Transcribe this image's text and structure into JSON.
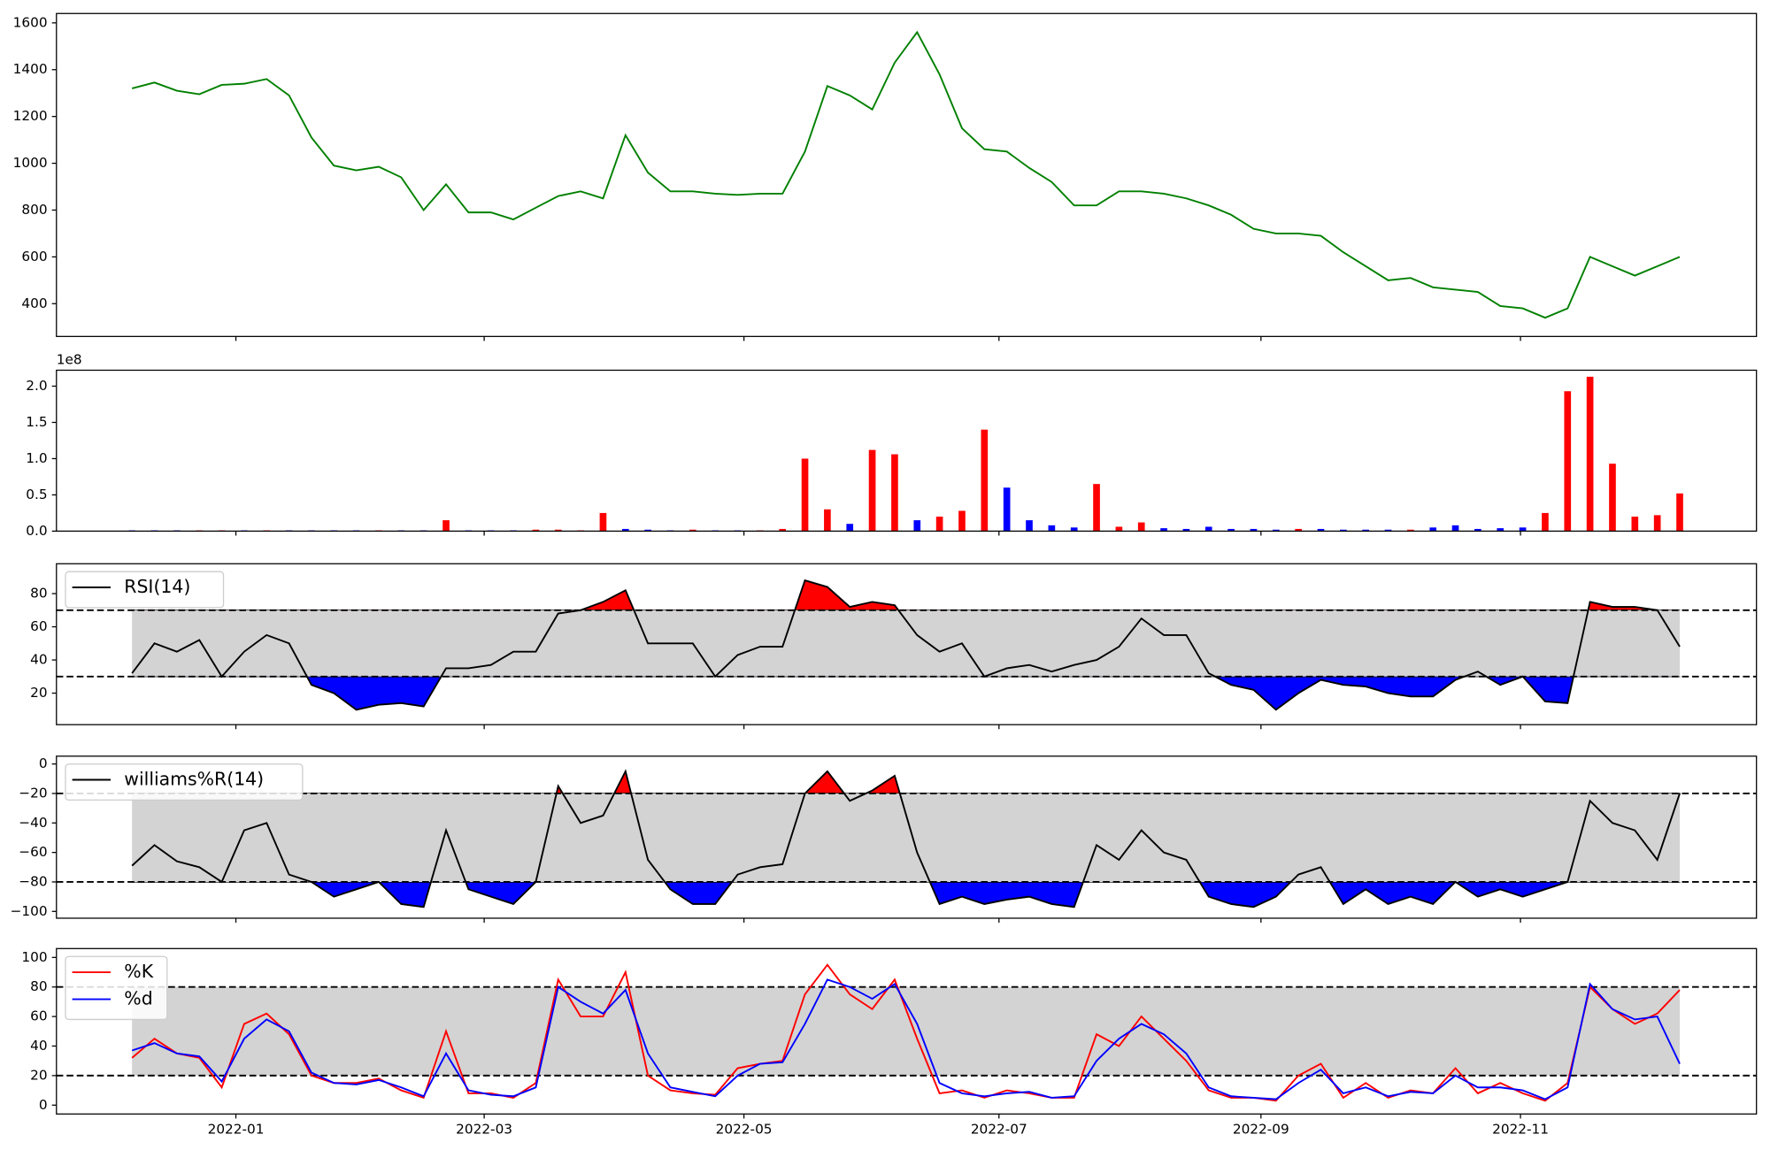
{
  "chart_data": [
    {
      "type": "line",
      "series": [
        {
          "color": "#008000",
          "values": [
            1320,
            1345,
            1310,
            1295,
            1335,
            1340,
            1360,
            1290,
            1110,
            990,
            970,
            985,
            940,
            800,
            910,
            790,
            790,
            760,
            810,
            860,
            880,
            850,
            1120,
            960,
            880,
            880,
            870,
            865,
            870,
            870,
            1050,
            1330,
            1290,
            1230,
            1430,
            1560,
            1380,
            1150,
            1060,
            1050,
            980,
            920,
            820,
            820,
            880,
            880,
            870,
            850,
            820,
            780,
            720,
            700,
            700,
            690,
            620,
            560,
            500,
            510,
            470,
            460,
            450,
            390,
            380,
            340,
            380,
            600,
            560,
            520,
            560,
            600
          ]
        }
      ],
      "ylim": [
        260,
        1640
      ],
      "yticks": [
        400,
        600,
        800,
        1000,
        1200,
        1400,
        1600
      ]
    },
    {
      "type": "bar",
      "offset_text": "1e8",
      "values": [
        0.01,
        0.01,
        0.01,
        0.01,
        0.01,
        0.01,
        0.01,
        0.01,
        0.01,
        0.01,
        0.01,
        0.01,
        0.01,
        0.01,
        0.15,
        0.01,
        0.01,
        0.01,
        0.02,
        0.02,
        0.01,
        0.25,
        0.03,
        0.02,
        0.01,
        0.02,
        0.01,
        0.01,
        0.01,
        0.03,
        1.0,
        0.3,
        0.1,
        1.12,
        1.06,
        0.15,
        0.2,
        0.28,
        1.4,
        0.6,
        0.15,
        0.08,
        0.05,
        0.65,
        0.06,
        0.12,
        0.04,
        0.03,
        0.06,
        0.03,
        0.03,
        0.02,
        0.03,
        0.03,
        0.02,
        0.02,
        0.02,
        0.02,
        0.05,
        0.08,
        0.03,
        0.04,
        0.05,
        0.25,
        1.93,
        2.13,
        0.93,
        0.2,
        0.22,
        0.52
      ],
      "colors": [
        "blue",
        "blue",
        "blue",
        "red",
        "red",
        "blue",
        "red",
        "blue",
        "blue",
        "blue",
        "blue",
        "red",
        "blue",
        "blue",
        "red",
        "blue",
        "blue",
        "blue",
        "red",
        "red",
        "red",
        "red",
        "blue",
        "blue",
        "blue",
        "red",
        "blue",
        "blue",
        "red",
        "red",
        "red",
        "red",
        "blue",
        "red",
        "red",
        "blue",
        "red",
        "red",
        "red",
        "blue",
        "blue",
        "blue",
        "blue",
        "red",
        "red",
        "red",
        "blue",
        "blue",
        "blue",
        "blue",
        "blue",
        "blue",
        "red",
        "blue",
        "blue",
        "blue",
        "blue",
        "red",
        "blue",
        "blue",
        "blue",
        "blue",
        "blue",
        "red",
        "red",
        "red",
        "red",
        "red",
        "red",
        "red"
      ],
      "ylim": [
        0,
        2.22
      ],
      "yticks": [
        {
          "value": 0,
          "label": "0.0"
        },
        0.5,
        {
          "value": 1,
          "label": "1.0"
        },
        1.5,
        {
          "value": 2,
          "label": "2.0"
        }
      ]
    },
    {
      "type": "line",
      "legend": "upper left",
      "hlines": [
        30,
        70
      ],
      "fill": {
        "band": "#d3d3d3",
        "above": "red",
        "below": "blue"
      },
      "series": [
        {
          "name": "RSI(14)",
          "color": "black",
          "values": [
            32,
            50,
            45,
            52,
            30,
            45,
            55,
            50,
            25,
            20,
            10,
            13,
            14,
            12,
            35,
            35,
            37,
            45,
            45,
            68,
            70,
            75,
            82,
            50,
            50,
            50,
            30,
            43,
            48,
            48,
            88,
            84,
            72,
            75,
            73,
            55,
            45,
            50,
            30,
            35,
            37,
            33,
            37,
            40,
            48,
            65,
            55,
            55,
            32,
            25,
            22,
            10,
            20,
            28,
            25,
            24,
            20,
            18,
            18,
            28,
            33,
            25,
            30,
            15,
            14,
            75,
            72,
            72,
            70,
            48
          ]
        }
      ],
      "ylim": [
        1,
        98
      ],
      "yticks": [
        20,
        40,
        60,
        80
      ]
    },
    {
      "type": "line",
      "legend": "upper left",
      "hlines": [
        -80,
        -20
      ],
      "fill": {
        "band": "#d3d3d3",
        "above": "red",
        "below": "blue"
      },
      "series": [
        {
          "name": "williams%R(14)",
          "color": "black",
          "values": [
            -69,
            -55,
            -66,
            -70,
            -80,
            -45,
            -40,
            -75,
            -80,
            -90,
            -85,
            -80,
            -95,
            -97,
            -45,
            -85,
            -90,
            -95,
            -80,
            -15,
            -40,
            -35,
            -5,
            -65,
            -85,
            -95,
            -95,
            -75,
            -70,
            -68,
            -20,
            -5,
            -25,
            -18,
            -8,
            -60,
            -95,
            -90,
            -95,
            -92,
            -90,
            -95,
            -97,
            -55,
            -65,
            -45,
            -60,
            -65,
            -90,
            -95,
            -97,
            -90,
            -75,
            -70,
            -95,
            -85,
            -95,
            -90,
            -95,
            -80,
            -90,
            -85,
            -90,
            -85,
            -80,
            -25,
            -40,
            -45,
            -65,
            -20
          ]
        }
      ],
      "ylim": [
        -104.6,
        5.3
      ],
      "yticks": [
        {
          "value": -100,
          "label": "−100"
        },
        {
          "value": -80,
          "label": "−80"
        },
        {
          "value": -60,
          "label": "−60"
        },
        {
          "value": -40,
          "label": "−40"
        },
        {
          "value": -20,
          "label": "−20"
        },
        0
      ]
    },
    {
      "type": "line",
      "legend": "upper left",
      "hlines": [
        20,
        80
      ],
      "fill": {
        "band": "#d3d3d3"
      },
      "series": [
        {
          "name": "%K",
          "color": "red",
          "values": [
            32,
            45,
            35,
            32,
            12,
            55,
            62,
            48,
            20,
            15,
            15,
            18,
            10,
            5,
            50,
            8,
            8,
            5,
            15,
            85,
            60,
            60,
            90,
            20,
            10,
            8,
            7,
            25,
            28,
            30,
            75,
            95,
            75,
            65,
            85,
            45,
            8,
            10,
            5,
            10,
            8,
            5,
            5,
            48,
            40,
            60,
            45,
            30,
            10,
            5,
            5,
            3,
            20,
            28,
            5,
            15,
            5,
            10,
            8,
            25,
            8,
            15,
            8,
            3,
            15,
            80,
            65,
            55,
            62,
            78
          ]
        },
        {
          "name": "%d",
          "color": "blue",
          "values": [
            37,
            42,
            35,
            33,
            16,
            45,
            58,
            50,
            22,
            15,
            14,
            17,
            12,
            6,
            35,
            10,
            7,
            6,
            12,
            80,
            70,
            62,
            78,
            35,
            12,
            9,
            6,
            20,
            28,
            29,
            55,
            85,
            80,
            72,
            82,
            55,
            15,
            8,
            6,
            8,
            9,
            5,
            6,
            30,
            45,
            55,
            48,
            35,
            12,
            6,
            5,
            4,
            15,
            24,
            8,
            12,
            6,
            9,
            8,
            20,
            12,
            12,
            10,
            4,
            12,
            82,
            65,
            58,
            60,
            28
          ]
        }
      ],
      "ylim": [
        -6,
        106
      ],
      "yticks": [
        0,
        20,
        40,
        60,
        80,
        100
      ],
      "xlim": [
        -3.37,
        72.42
      ],
      "xticks": [
        {
          "value": 4.63,
          "label": "2022-01"
        },
        {
          "value": 15.7,
          "label": "2022-03"
        },
        {
          "value": 27.28,
          "label": "2022-05"
        },
        {
          "value": 38.65,
          "label": "2022-07"
        },
        {
          "value": 50.33,
          "label": "2022-09"
        },
        {
          "value": 61.9,
          "label": "2022-11"
        }
      ]
    }
  ]
}
